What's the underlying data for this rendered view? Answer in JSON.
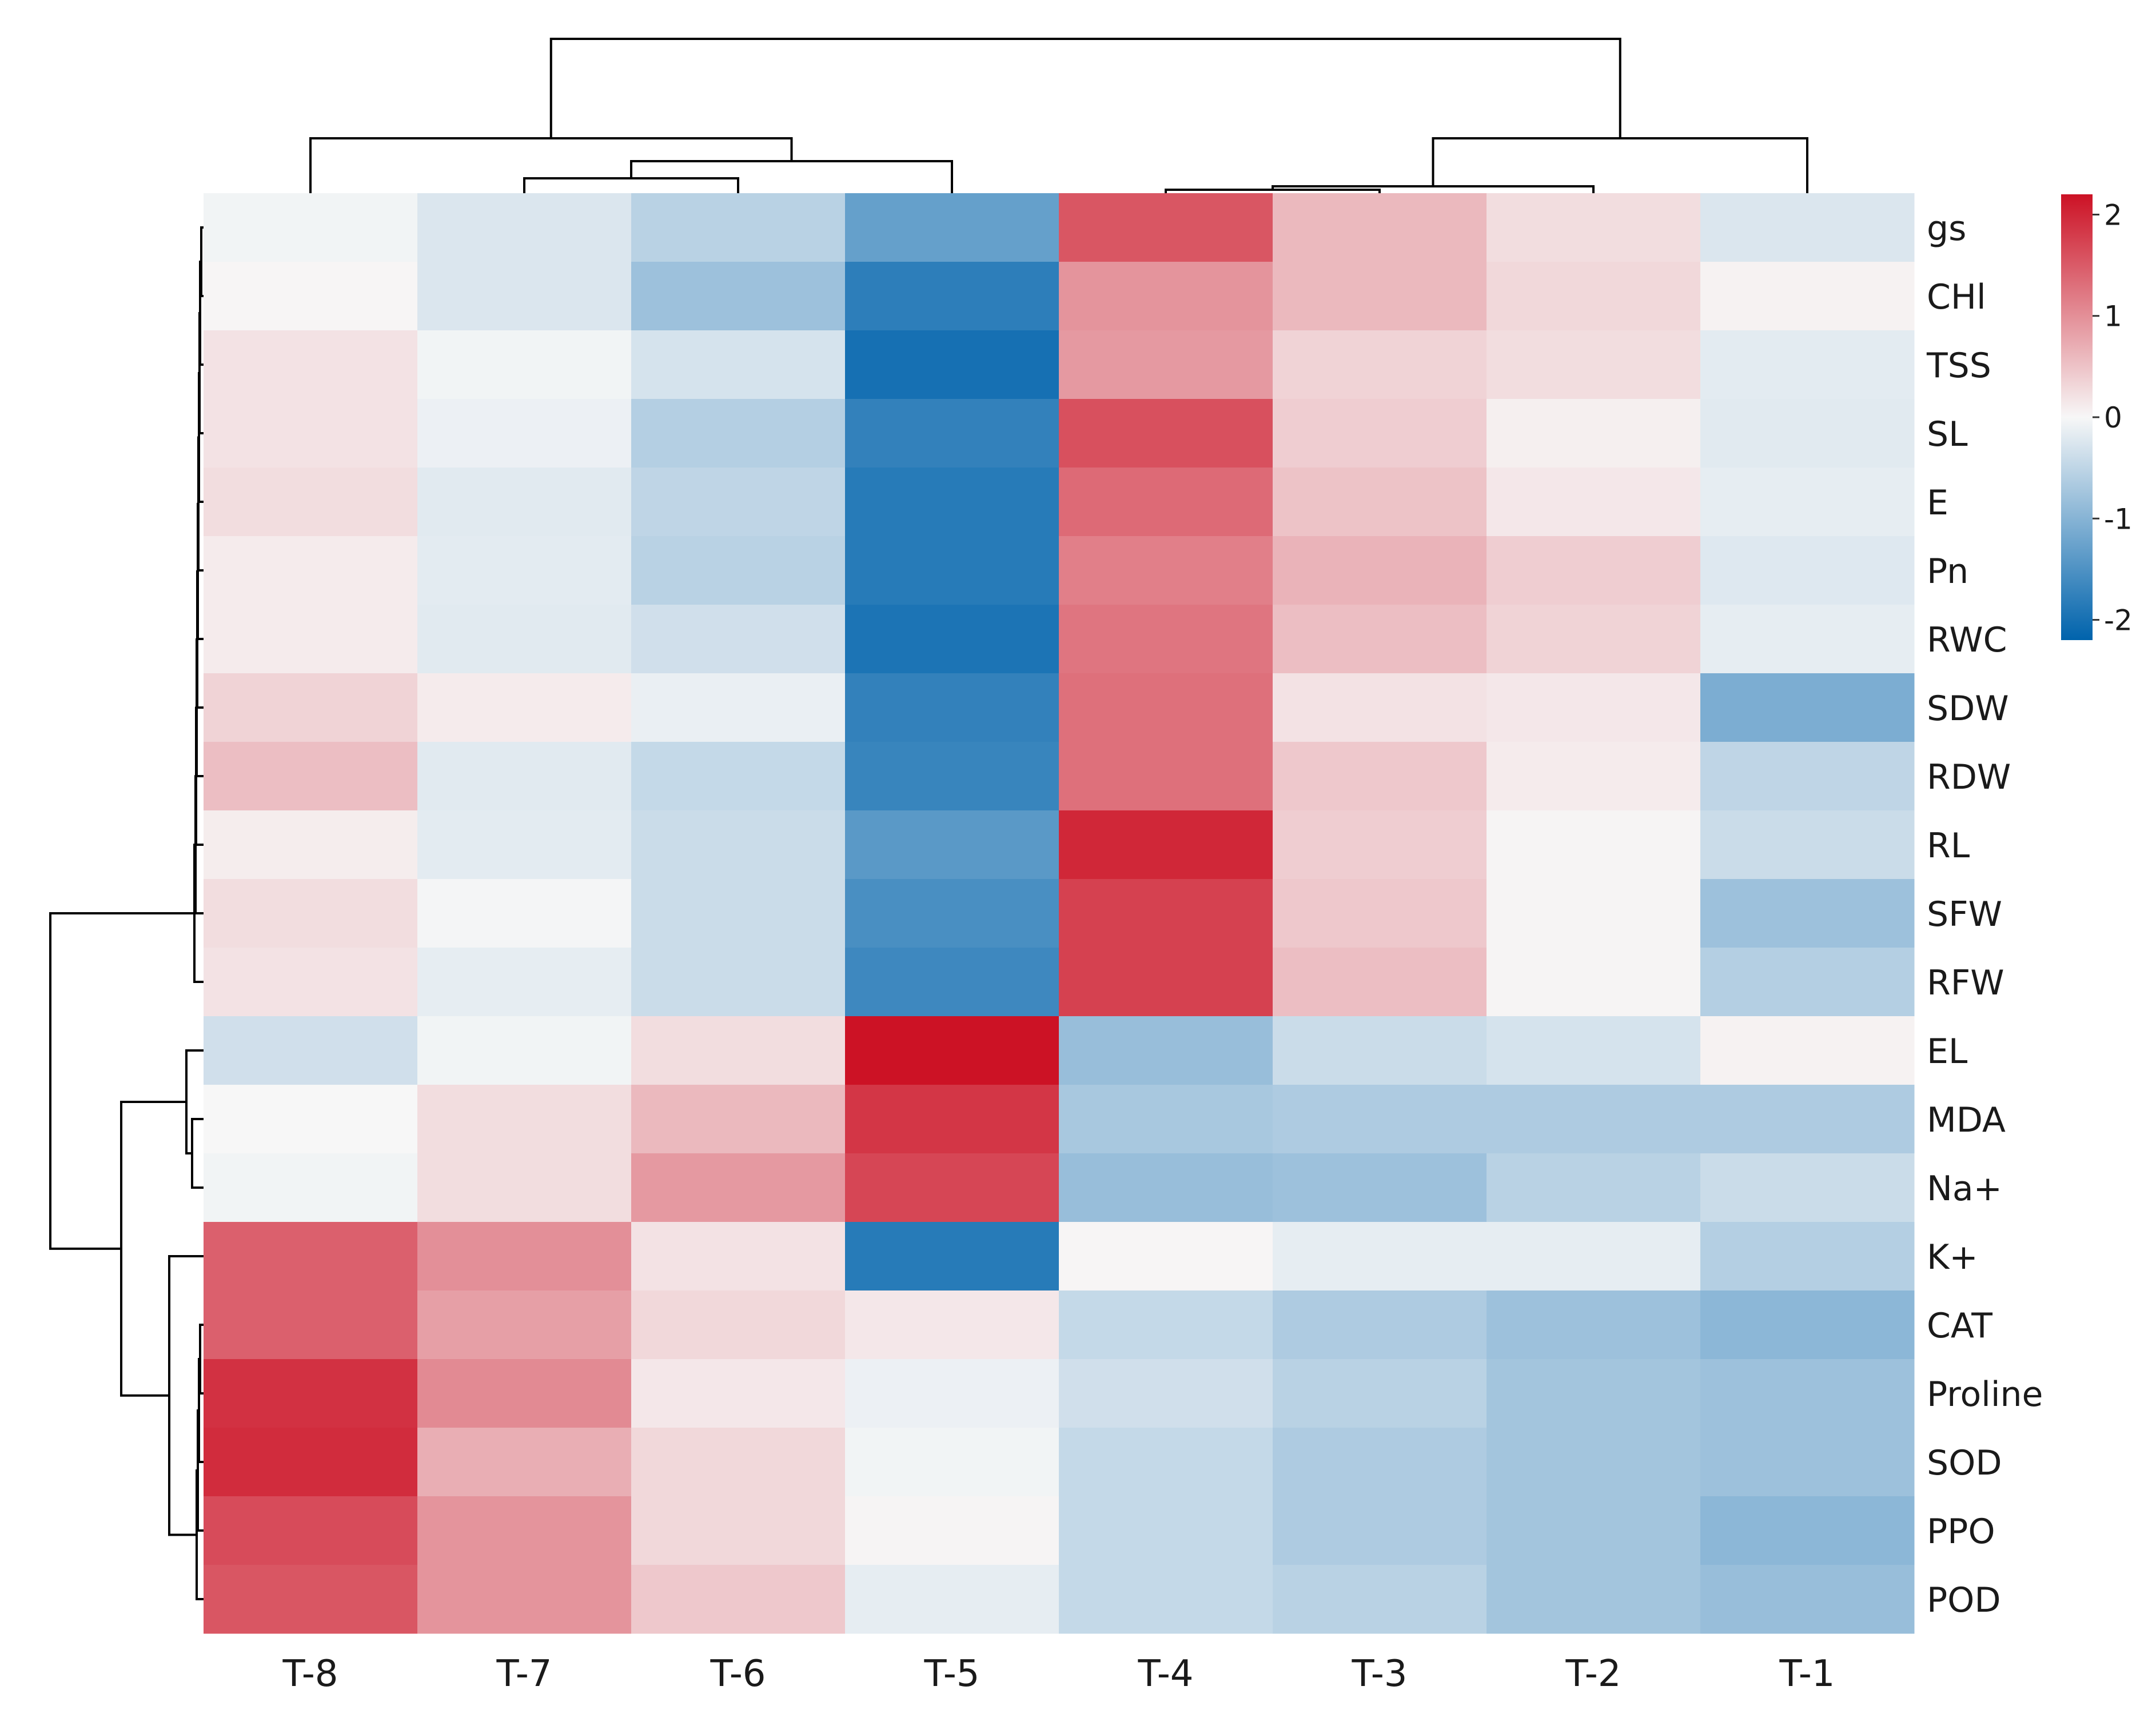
{
  "chart_data": {
    "type": "heatmap",
    "title": "",
    "columns": [
      "T-8",
      "T-7",
      "T-6",
      "T-5",
      "T-4",
      "T-3",
      "T-2",
      "T-1"
    ],
    "rows": [
      "gs",
      "CHl",
      "TSS",
      "SL",
      "E",
      "Pn",
      "RWC",
      "SDW",
      "RDW",
      "RL",
      "SFW",
      "RFW",
      "EL",
      "MDA",
      "Na+",
      "K+",
      "CAT",
      "Proline",
      "SOD",
      "PPO",
      "POD"
    ],
    "values": [
      [
        -0.05,
        -0.25,
        -0.55,
        -1.3,
        1.55,
        0.6,
        0.25,
        -0.25
      ],
      [
        0.02,
        -0.25,
        -0.8,
        -1.8,
        0.95,
        0.6,
        0.3,
        0.05
      ],
      [
        0.2,
        -0.05,
        -0.3,
        -2.0,
        0.9,
        0.35,
        0.25,
        -0.18
      ],
      [
        0.2,
        -0.1,
        -0.6,
        -1.75,
        1.6,
        0.4,
        0.08,
        -0.2
      ],
      [
        0.25,
        -0.2,
        -0.5,
        -1.85,
        1.35,
        0.5,
        0.15,
        -0.15
      ],
      [
        0.12,
        -0.18,
        -0.55,
        -1.85,
        1.15,
        0.65,
        0.4,
        -0.22
      ],
      [
        0.12,
        -0.2,
        -0.35,
        -1.95,
        1.25,
        0.55,
        0.35,
        -0.15
      ],
      [
        0.35,
        0.12,
        -0.12,
        -1.75,
        1.3,
        0.2,
        0.15,
        -1.1
      ],
      [
        0.55,
        -0.2,
        -0.45,
        -1.7,
        1.3,
        0.45,
        0.12,
        -0.5
      ],
      [
        0.1,
        -0.18,
        -0.4,
        -1.4,
        2.0,
        0.4,
        0.03,
        -0.4
      ],
      [
        0.25,
        -0.03,
        -0.4,
        -1.55,
        1.75,
        0.45,
        0.03,
        -0.8
      ],
      [
        0.2,
        -0.15,
        -0.4,
        -1.65,
        1.75,
        0.55,
        0.03,
        -0.6
      ],
      [
        -0.35,
        -0.05,
        0.25,
        2.2,
        -0.85,
        -0.4,
        -0.3,
        0.05
      ],
      [
        0.0,
        0.25,
        0.6,
        1.85,
        -0.7,
        -0.65,
        -0.65,
        -0.65
      ],
      [
        -0.05,
        0.25,
        0.9,
        1.7,
        -0.85,
        -0.8,
        -0.55,
        -0.4
      ],
      [
        1.45,
        1.0,
        0.2,
        -1.85,
        0.02,
        -0.15,
        -0.15,
        -0.6
      ],
      [
        1.45,
        0.85,
        0.3,
        0.15,
        -0.45,
        -0.65,
        -0.8,
        -0.95
      ],
      [
        1.9,
        1.05,
        0.15,
        -0.1,
        -0.35,
        -0.55,
        -0.75,
        -0.8
      ],
      [
        1.95,
        0.7,
        0.3,
        -0.05,
        -0.45,
        -0.65,
        -0.75,
        -0.8
      ],
      [
        1.65,
        0.95,
        0.3,
        0.03,
        -0.45,
        -0.65,
        -0.75,
        -0.95
      ],
      [
        1.55,
        0.95,
        0.45,
        -0.15,
        -0.45,
        -0.55,
        -0.75,
        -0.85
      ]
    ],
    "color_scale": {
      "min": -2.2,
      "max": 2.2,
      "low_color": "#0063ac",
      "mid_color": "#f7f7f7",
      "high_color": "#cc1225",
      "ticks": [
        2,
        1,
        0,
        -1,
        -2
      ],
      "tick_labels": [
        "2",
        "1",
        "0",
        "-1",
        "-2"
      ]
    },
    "legend_position": "top-right",
    "row_dendrogram": true,
    "column_dendrogram": true
  }
}
